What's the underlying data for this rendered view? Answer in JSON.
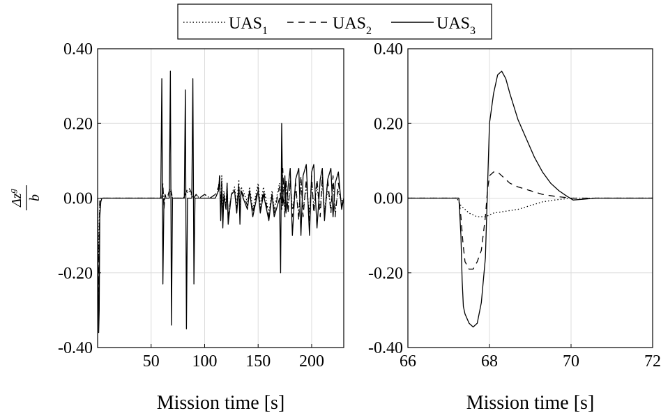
{
  "legend": {
    "placement": "top-center",
    "entries": [
      {
        "base": "UAS",
        "sub": "1",
        "dash": "dotted"
      },
      {
        "base": "UAS",
        "sub": "2",
        "dash": "dashed"
      },
      {
        "base": "UAS",
        "sub": "3",
        "dash": "solid"
      }
    ]
  },
  "ylabel": {
    "numerator": "Δz",
    "superscript": "g",
    "denominator": "b"
  },
  "chart_data": [
    {
      "type": "line",
      "xlabel": "Mission time [s]",
      "xlim": [
        0,
        230
      ],
      "ylim": [
        -0.4,
        0.4
      ],
      "xticks": [
        50,
        100,
        150,
        200
      ],
      "xtick_labels": [
        "50",
        "100",
        "150",
        "200"
      ],
      "yticks": [
        -0.4,
        -0.2,
        0,
        0.2,
        0.4
      ],
      "ytick_labels": [
        "-0.40",
        "-0.20",
        "0.00",
        "0.20",
        "0.40"
      ],
      "grid": true,
      "series": [
        {
          "dash": "dotted",
          "x": [
            0,
            1,
            2,
            3,
            4,
            5,
            10,
            20,
            30,
            40,
            50,
            60,
            61,
            62,
            63,
            64,
            65,
            68,
            70,
            75,
            80,
            85,
            90,
            92,
            95,
            100,
            105,
            110,
            113,
            114,
            115,
            116,
            117,
            118,
            120,
            121,
            122,
            125,
            128,
            130,
            132,
            133,
            134,
            136,
            140,
            142,
            145,
            150,
            152,
            155,
            160,
            163,
            165,
            170,
            172,
            173,
            175,
            176,
            178,
            180,
            182,
            185,
            188,
            190,
            192,
            195,
            198,
            200,
            202,
            205,
            208,
            210,
            212,
            215,
            218,
            220,
            222,
            225,
            228,
            230
          ],
          "y": [
            0,
            -0.16,
            -0.01,
            0,
            0,
            0,
            0,
            0,
            0,
            0,
            0,
            0,
            0.03,
            -0.02,
            0.01,
            0,
            0,
            0.02,
            0,
            0,
            0,
            0.02,
            0,
            0.01,
            0,
            0.01,
            0,
            0.01,
            0.02,
            0.05,
            -0.03,
            0.06,
            -0.04,
            0.02,
            -0.02,
            0.04,
            -0.06,
            0.01,
            0.03,
            -0.02,
            0.05,
            -0.04,
            0.03,
            0.02,
            -0.01,
            0.03,
            -0.03,
            0.04,
            -0.02,
            0.03,
            -0.04,
            0.02,
            -0.03,
            0.04,
            -0.02,
            0.05,
            -0.03,
            0.03,
            -0.02,
            0.04,
            -0.03,
            0.02,
            -0.04,
            0.04,
            -0.03,
            0.03,
            -0.04,
            0.04,
            -0.02,
            0.03,
            -0.03,
            0.04,
            -0.03,
            0.02,
            -0.02,
            0.04,
            -0.03,
            0.02,
            -0.01,
            0
          ]
        },
        {
          "dash": "dashed",
          "x": [
            0,
            1,
            2,
            3,
            4,
            5,
            10,
            20,
            30,
            40,
            50,
            60,
            61,
            62,
            63,
            64,
            65,
            68,
            70,
            75,
            80,
            85,
            90,
            92,
            95,
            100,
            105,
            110,
            113,
            114,
            115,
            116,
            117,
            118,
            120,
            121,
            122,
            125,
            128,
            130,
            132,
            133,
            134,
            136,
            140,
            142,
            145,
            150,
            152,
            155,
            160,
            163,
            165,
            170,
            172,
            173,
            175,
            176,
            178,
            180,
            182,
            185,
            188,
            190,
            192,
            195,
            198,
            200,
            202,
            205,
            208,
            210,
            212,
            215,
            218,
            220,
            222,
            225,
            228,
            230
          ],
          "y": [
            0,
            -0.25,
            -0.01,
            0,
            0,
            0,
            0,
            0,
            0,
            0,
            0,
            0,
            0.04,
            -0.03,
            0.01,
            0,
            0,
            0.03,
            0,
            0,
            0,
            0.03,
            0,
            0.01,
            0,
            0.01,
            0,
            0.01,
            0.03,
            0.06,
            -0.04,
            0.05,
            -0.05,
            0.01,
            -0.03,
            0.03,
            -0.05,
            0.01,
            0.02,
            -0.03,
            0.04,
            -0.05,
            0.02,
            0.01,
            -0.02,
            0.02,
            -0.04,
            0.03,
            -0.03,
            0.02,
            -0.05,
            0.01,
            -0.04,
            0.03,
            -0.03,
            0.08,
            -0.05,
            0.05,
            -0.04,
            0.05,
            -0.05,
            0.04,
            -0.06,
            0.06,
            -0.05,
            0.05,
            -0.06,
            0.06,
            -0.04,
            0.05,
            -0.05,
            0.06,
            -0.05,
            0.05,
            -0.04,
            0.06,
            -0.05,
            0.04,
            -0.02,
            0
          ]
        },
        {
          "dash": "solid",
          "x": [
            0,
            1,
            1.5,
            2,
            3,
            4,
            5,
            10,
            20,
            30,
            40,
            50,
            59,
            60,
            61,
            62,
            63,
            64,
            65,
            66,
            67,
            68,
            69,
            70,
            75,
            80,
            81,
            82,
            83,
            84,
            85,
            88,
            89,
            90,
            91,
            92,
            95,
            100,
            105,
            110,
            113,
            114,
            115,
            116,
            117,
            118,
            120,
            121,
            122,
            125,
            128,
            130,
            132,
            133,
            134,
            136,
            140,
            142,
            145,
            150,
            152,
            155,
            160,
            163,
            165,
            170,
            171,
            172,
            173,
            174,
            175,
            176,
            178,
            180,
            182,
            185,
            188,
            190,
            192,
            195,
            198,
            200,
            202,
            205,
            208,
            210,
            212,
            215,
            218,
            220,
            222,
            225,
            228,
            230
          ],
          "y": [
            0,
            -0.36,
            -0.3,
            -0.05,
            -0.01,
            0,
            0,
            0,
            0,
            0,
            0,
            0,
            0,
            0.32,
            -0.23,
            0,
            0,
            0,
            0,
            0,
            0,
            0.34,
            -0.34,
            0,
            0,
            0,
            0,
            0.29,
            -0.35,
            0,
            0,
            0,
            0.32,
            -0.23,
            0,
            0,
            0,
            0,
            0,
            0,
            0.02,
            0.06,
            -0.06,
            0.03,
            -0.08,
            0.01,
            -0.03,
            0.04,
            -0.07,
            0.01,
            0.02,
            -0.04,
            0.03,
            -0.07,
            0.02,
            0,
            -0.03,
            0.02,
            -0.05,
            0.02,
            -0.04,
            0.01,
            -0.06,
            0.01,
            -0.05,
            0,
            -0.2,
            0.2,
            -0.02,
            0,
            0.06,
            -0.04,
            0.03,
            0.08,
            -0.1,
            0.05,
            0.08,
            -0.1,
            0.06,
            0.09,
            -0.1,
            0.07,
            0.09,
            -0.08,
            0.05,
            0.08,
            -0.06,
            0.05,
            0.08,
            -0.05,
            0.04,
            0.07,
            -0.03,
            0
          ]
        }
      ]
    },
    {
      "type": "line",
      "xlabel": "Mission time [s]",
      "xlim": [
        66,
        72
      ],
      "ylim": [
        -0.4,
        0.4
      ],
      "xticks": [
        66,
        68,
        70,
        72
      ],
      "xtick_labels": [
        "66",
        "68",
        "70",
        "72"
      ],
      "yticks": [
        -0.4,
        -0.2,
        0,
        0.2,
        0.4
      ],
      "ytick_labels": [
        "-0.40",
        "-0.20",
        "0.00",
        "0.20",
        "0.40"
      ],
      "grid": true,
      "series": [
        {
          "dash": "dotted",
          "x": [
            66,
            67.2,
            67.3,
            67.5,
            67.7,
            67.9,
            68.1,
            68.4,
            68.7,
            69.0,
            69.3,
            69.6,
            70.0,
            70.3,
            72
          ],
          "y": [
            0,
            0,
            -0.02,
            -0.04,
            -0.05,
            -0.05,
            -0.04,
            -0.035,
            -0.03,
            -0.02,
            -0.01,
            -0.005,
            0,
            0,
            0
          ]
        },
        {
          "dash": "dashed",
          "x": [
            66,
            67.25,
            67.3,
            67.35,
            67.4,
            67.5,
            67.6,
            67.7,
            67.8,
            67.9,
            67.95,
            68.0,
            68.1,
            68.2,
            68.3,
            68.5,
            68.7,
            69.0,
            69.3,
            69.6,
            70.0,
            70.3,
            72
          ],
          "y": [
            0,
            0,
            -0.05,
            -0.12,
            -0.17,
            -0.19,
            -0.19,
            -0.17,
            -0.14,
            -0.05,
            0.02,
            0.06,
            0.07,
            0.07,
            0.06,
            0.04,
            0.03,
            0.02,
            0.01,
            0.005,
            0,
            0,
            0
          ]
        },
        {
          "dash": "solid",
          "x": [
            66,
            67.25,
            67.3,
            67.33,
            67.36,
            67.4,
            67.5,
            67.6,
            67.7,
            67.8,
            67.9,
            68.0,
            68.1,
            68.2,
            68.3,
            68.4,
            68.5,
            68.7,
            68.9,
            69.1,
            69.3,
            69.5,
            69.7,
            69.9,
            70.05,
            70.3,
            70.6,
            71.0,
            72
          ],
          "y": [
            0,
            0,
            -0.1,
            -0.22,
            -0.29,
            -0.31,
            -0.335,
            -0.345,
            -0.335,
            -0.28,
            -0.16,
            0.2,
            0.28,
            0.33,
            0.34,
            0.32,
            0.28,
            0.21,
            0.16,
            0.11,
            0.07,
            0.04,
            0.02,
            0.005,
            -0.005,
            -0.003,
            0,
            0,
            0
          ]
        }
      ]
    }
  ]
}
